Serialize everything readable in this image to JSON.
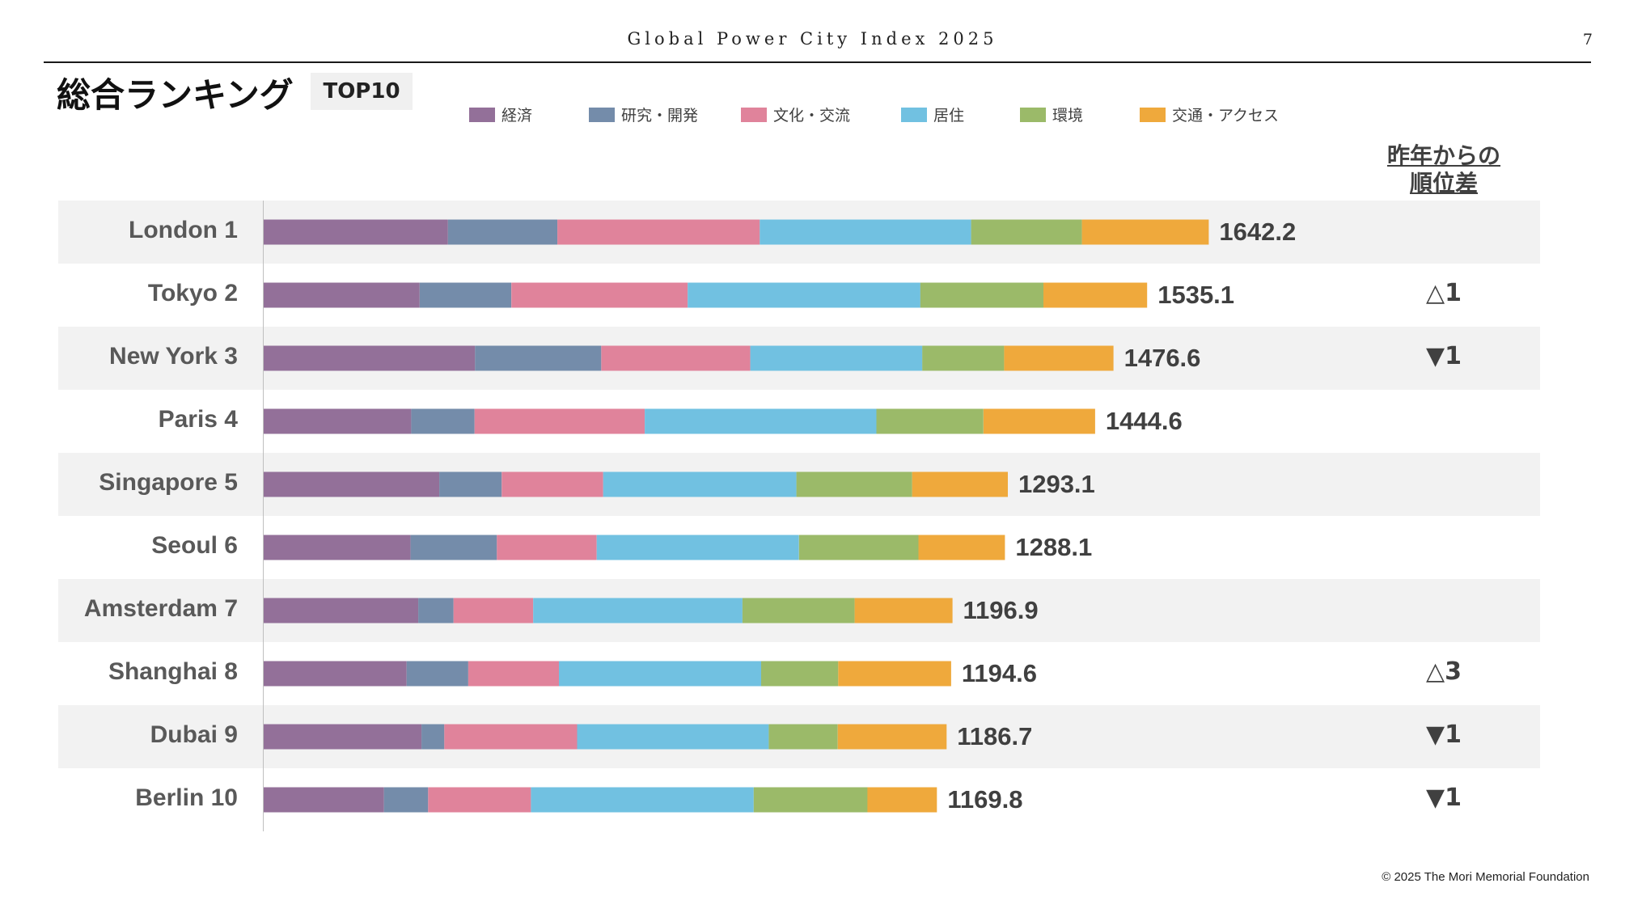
{
  "header": {
    "report_title": "Global Power City Index 2025",
    "page_number": "7"
  },
  "title": "総合ランキング",
  "badge": "TOP10",
  "change_header": [
    "昨年からの",
    "順位差"
  ],
  "footer": {
    "copyright": "© 2025 The Mori Memorial Foundation"
  },
  "chart_data": {
    "type": "bar",
    "orientation": "horizontal",
    "stacked": true,
    "legend_position": "top",
    "grid": false,
    "xlim": [
      0,
      1700
    ],
    "categories": [
      "London 1",
      "Tokyo 2",
      "New York 3",
      "Paris 4",
      "Singapore 5",
      "Seoul 6",
      "Amsterdam 7",
      "Shanghai 8",
      "Dubai 9",
      "Berlin 10"
    ],
    "series": [
      {
        "name": "経済",
        "color": "#937099",
        "values": [
          320.2,
          271.0,
          367.3,
          256.3,
          305.2,
          255.2,
          268.6,
          248.4,
          274.2,
          209.0
        ]
      },
      {
        "name": "研究・開発",
        "color": "#748caa",
        "values": [
          190.2,
          159.3,
          219.3,
          110.1,
          108.4,
          150.0,
          61.3,
          107.1,
          39.6,
          76.8
        ]
      },
      {
        "name": "文化・交流",
        "color": "#e0839b",
        "values": [
          351.6,
          306.4,
          258.9,
          295.7,
          176.3,
          173.5,
          138.4,
          157.5,
          230.8,
          178.6
        ]
      },
      {
        "name": "居住",
        "color": "#71c1e1",
        "values": [
          367.3,
          404.3,
          298.9,
          402.6,
          335.8,
          351.4,
          363.6,
          351.4,
          333.0,
          387.0
        ]
      },
      {
        "name": "環境",
        "color": "#9bba69",
        "values": [
          192.5,
          213.9,
          142.2,
          186.0,
          201.1,
          207.6,
          194.9,
          133.9,
          119.8,
          197.7
        ]
      },
      {
        "name": "交通・アクセス",
        "color": "#efa93c",
        "values": [
          220.4,
          180.2,
          190.0,
          194.0,
          166.2,
          150.3,
          170.0,
          196.2,
          189.2,
          120.8
        ]
      }
    ],
    "totals": [
      "1642.2",
      "1535.1",
      "1476.6",
      "1444.6",
      "1293.1",
      "1288.1",
      "1196.9",
      "1194.6",
      "1186.7",
      "1169.8"
    ],
    "rank_change": [
      "",
      "△1",
      "▼1",
      "",
      "",
      "",
      "",
      "△3",
      "▼1",
      "▼1"
    ]
  }
}
